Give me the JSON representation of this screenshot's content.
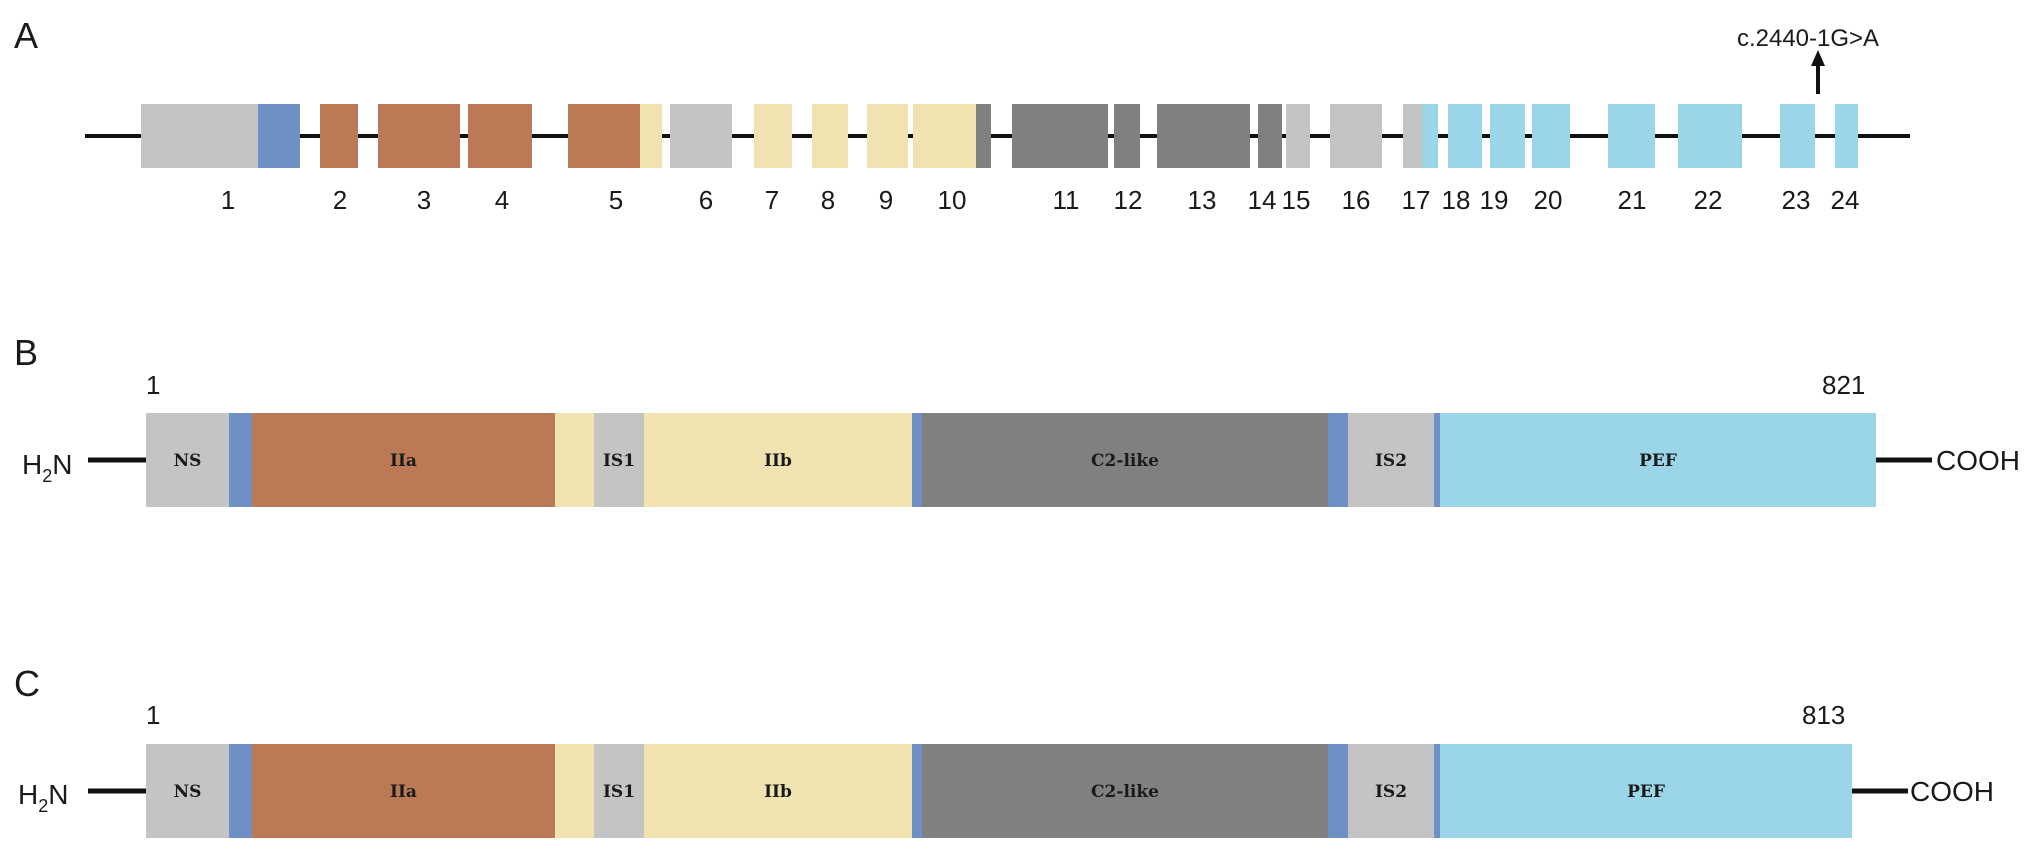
{
  "colors": {
    "gray_light": "#c4c4c4",
    "gray_dark": "#808080",
    "blue_linker": "#6f90c4",
    "brown": "#bb7a55",
    "yellow": "#f1e2b1",
    "cyan": "#9ad6e8",
    "line": "#111111"
  },
  "panel_a": {
    "letter": "A",
    "mutation_label": "c.2440-1G>A",
    "exon_labels": [
      "1",
      "2",
      "3",
      "4",
      "5",
      "6",
      "7",
      "8",
      "9",
      "10",
      "11",
      "12",
      "13",
      "14",
      "15",
      "16",
      "17",
      "18",
      "19",
      "20",
      "21",
      "22",
      "23",
      "24"
    ]
  },
  "panel_b": {
    "letter": "B",
    "start_label": "1",
    "end_label": "821",
    "n_terminus": "H2N",
    "c_terminus": "COOH",
    "domains": [
      "NS",
      "IIa",
      "IS1",
      "IIb",
      "C2-like",
      "IS2",
      "PEF"
    ]
  },
  "panel_c": {
    "letter": "C",
    "start_label": "1",
    "end_label": "813",
    "n_terminus": "H2N",
    "c_terminus": "COOH",
    "domains": [
      "NS",
      "IIa",
      "IS1",
      "IIb",
      "C2-like",
      "IS2",
      "PEF"
    ]
  }
}
